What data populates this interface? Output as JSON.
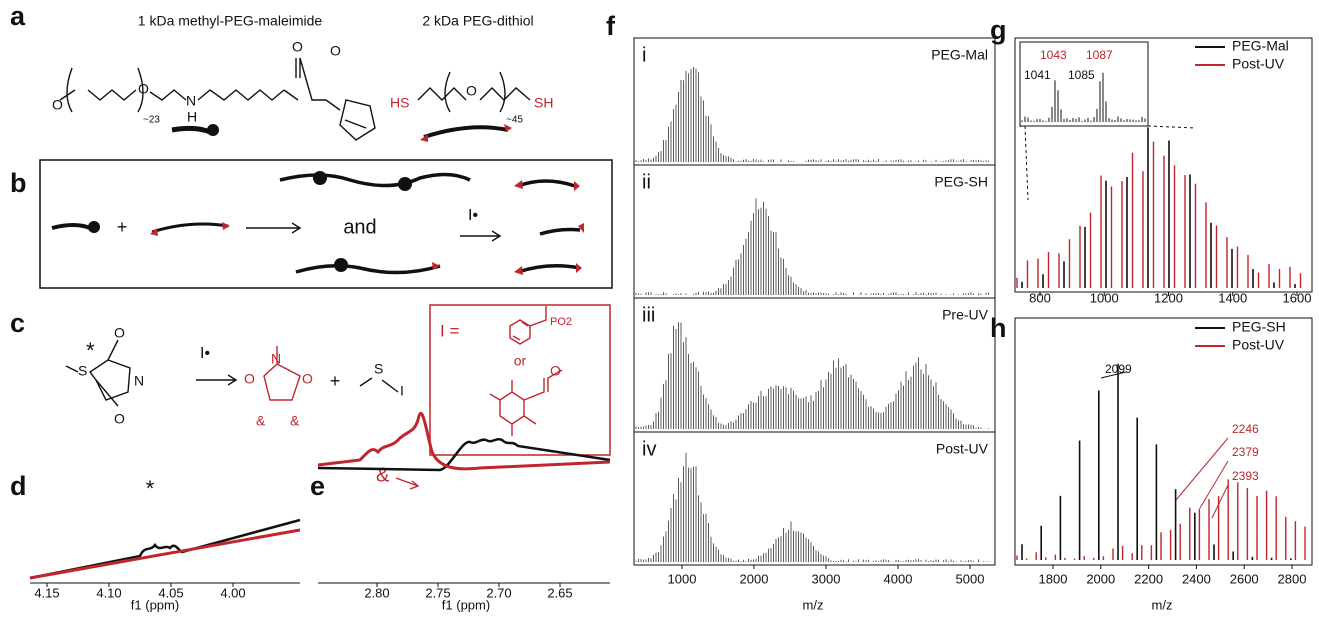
{
  "a": {
    "label": "a",
    "left_title": "1 kDa methyl-PEG-maleimide",
    "right_title": "2 kDa PEG-dithiol",
    "left_atoms": [
      "O",
      "O",
      "N",
      "H",
      "O",
      "O"
    ],
    "left_repeat": "~23",
    "right_atoms": [
      "HS",
      "O",
      "SH"
    ],
    "right_repeat": "~45"
  },
  "b": {
    "label": "b",
    "plus": "+",
    "and": "and",
    "initiator": "I•"
  },
  "c": {
    "label": "c",
    "reactant_atoms": [
      "S",
      "*",
      "N",
      "O",
      "O"
    ],
    "initiator": "I•",
    "product_atoms": [
      "O",
      "N",
      "O",
      "&",
      "&"
    ],
    "plus": "+",
    "thiol_atoms": [
      "S",
      "I"
    ],
    "box_title": "I =",
    "box_group": "PO2",
    "box_or": "or",
    "box_atom": "O"
  },
  "d": {
    "label": "d",
    "peak_marker": "*",
    "xticks": [
      "4.15",
      "4.10",
      "4.05",
      "4.00"
    ],
    "xlabel": "f1 (ppm)"
  },
  "e": {
    "label": "e",
    "peak_marker": "&",
    "xticks": [
      "2.80",
      "2.75",
      "2.70",
      "2.65"
    ],
    "xlabel": "f1 (ppm)"
  },
  "f": {
    "label": "f",
    "subpanels": [
      {
        "numeral": "i",
        "name": "PEG-Mal"
      },
      {
        "numeral": "ii",
        "name": "PEG-SH"
      },
      {
        "numeral": "iii",
        "name": "Pre-UV"
      },
      {
        "numeral": "iv",
        "name": "Post-UV"
      }
    ],
    "xticks": [
      1000,
      2000,
      3000,
      4000,
      5000
    ],
    "xlabel": "m/z"
  },
  "g": {
    "label": "g",
    "legend": [
      "PEG-Mal",
      "Post-UV"
    ],
    "inset_labels": [
      1041,
      1043,
      1085,
      1087
    ],
    "xticks": [
      800,
      1000,
      1200,
      1400,
      1600
    ]
  },
  "h": {
    "label": "h",
    "legend": [
      "PEG-SH",
      "Post-UV"
    ],
    "peak_labels": [
      2099,
      2246,
      2379,
      2393
    ],
    "xticks": [
      1800,
      2000,
      2200,
      2400,
      2600,
      2800
    ],
    "xlabel": "m/z"
  }
}
